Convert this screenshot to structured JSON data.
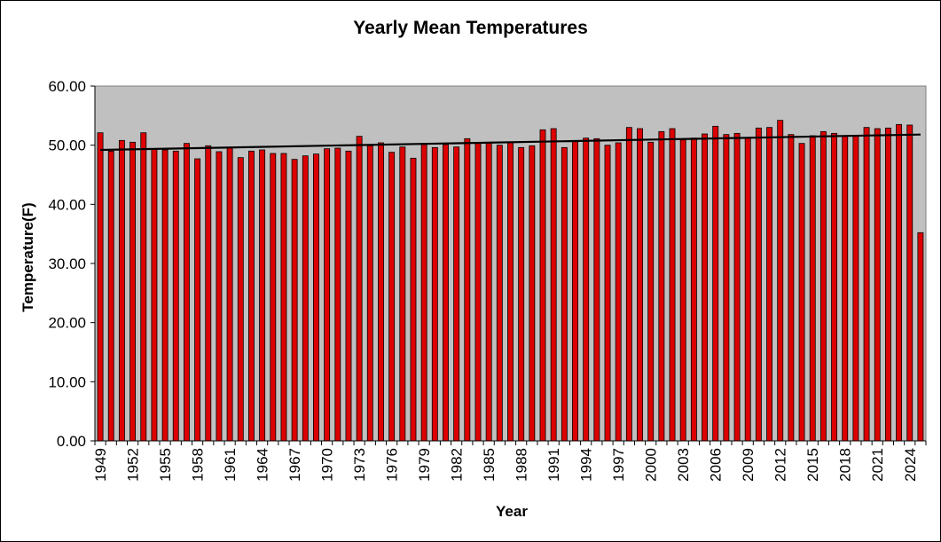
{
  "chart_data": {
    "type": "bar",
    "title": "Yearly Mean Temperatures",
    "xlabel": "Year",
    "ylabel": "Temperature(F)",
    "ylim": [
      0,
      60
    ],
    "yticks": [
      "0.00",
      "10.00",
      "20.00",
      "30.00",
      "40.00",
      "50.00",
      "60.00"
    ],
    "xtick_labels": [
      "1949",
      "1952",
      "1955",
      "1958",
      "1961",
      "1964",
      "1967",
      "1970",
      "1973",
      "1976",
      "1979",
      "1982",
      "1985",
      "1988",
      "1991",
      "1994",
      "1997",
      "2000",
      "2003",
      "2006",
      "2009",
      "2012",
      "2015",
      "2018",
      "2021",
      "2024"
    ],
    "categories": [
      "1949",
      "1950",
      "1951",
      "1952",
      "1953",
      "1954",
      "1955",
      "1956",
      "1957",
      "1958",
      "1959",
      "1960",
      "1961",
      "1962",
      "1963",
      "1964",
      "1965",
      "1966",
      "1967",
      "1968",
      "1969",
      "1970",
      "1971",
      "1972",
      "1973",
      "1974",
      "1975",
      "1976",
      "1977",
      "1978",
      "1979",
      "1980",
      "1981",
      "1982",
      "1983",
      "1984",
      "1985",
      "1986",
      "1987",
      "1988",
      "1989",
      "1990",
      "1991",
      "1992",
      "1993",
      "1994",
      "1995",
      "1996",
      "1997",
      "1998",
      "1999",
      "2000",
      "2001",
      "2002",
      "2003",
      "2004",
      "2005",
      "2006",
      "2007",
      "2008",
      "2009",
      "2010",
      "2011",
      "2012",
      "2013",
      "2014",
      "2015",
      "2016",
      "2017",
      "2018",
      "2019",
      "2020",
      "2021",
      "2022",
      "2023",
      "2024",
      "2025"
    ],
    "values": [
      52.1,
      49.0,
      50.8,
      50.5,
      52.1,
      49.3,
      49.2,
      49.0,
      50.3,
      47.7,
      49.9,
      48.9,
      49.6,
      47.9,
      49.0,
      49.2,
      48.6,
      48.6,
      47.6,
      48.2,
      48.5,
      49.4,
      49.5,
      49.0,
      51.5,
      49.9,
      50.4,
      48.8,
      49.7,
      47.8,
      50.1,
      49.6,
      50.1,
      49.7,
      51.1,
      50.3,
      50.5,
      50.0,
      50.5,
      49.6,
      49.9,
      52.6,
      52.8,
      49.6,
      50.6,
      51.2,
      51.1,
      50.0,
      50.4,
      53.0,
      52.8,
      50.5,
      52.3,
      52.8,
      50.9,
      51.2,
      51.9,
      53.2,
      51.8,
      52.0,
      51.3,
      52.9,
      53.0,
      54.2,
      51.8,
      50.3,
      51.6,
      52.3,
      52.0,
      51.6,
      51.5,
      53.0,
      52.8,
      52.9,
      53.5,
      53.4,
      35.2
    ],
    "trendline": {
      "start": 49.2,
      "end": 51.8
    },
    "grid": false,
    "legend": "none",
    "colors": {
      "bar_fill": "#dd0000",
      "bar_edge": "#000000",
      "plot_bg": "#c0c0c0",
      "trendline": "#000000"
    }
  }
}
